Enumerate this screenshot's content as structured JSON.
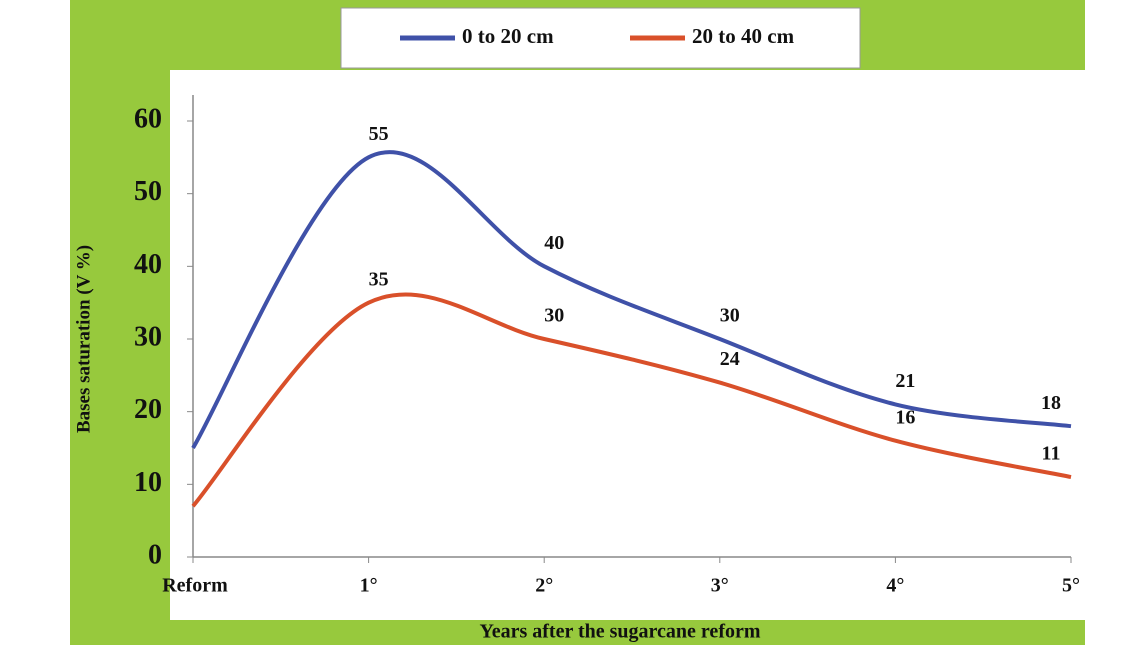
{
  "chart_data": {
    "type": "line",
    "x_label": "Years after the sugarcane reform",
    "y_label": "Bases saturation (V %)",
    "categories": [
      "Reform",
      "1°",
      "2°",
      "3°",
      "4°",
      "5°"
    ],
    "series": [
      {
        "name": "0 to 20 cm",
        "color": "#3f51a8",
        "values": [
          15,
          55,
          40,
          30,
          21,
          18
        ],
        "value_labels": [
          null,
          "55",
          "40",
          "30",
          "21",
          "18"
        ]
      },
      {
        "name": "20 to 40 cm",
        "color": "#d9502a",
        "values": [
          7,
          35,
          30,
          24,
          16,
          11
        ],
        "value_labels": [
          null,
          "35",
          "30",
          "24",
          "16",
          "11"
        ]
      }
    ],
    "ylim": [
      0,
      60
    ],
    "yticks": [
      0,
      10,
      20,
      30,
      40,
      50,
      60
    ],
    "legend": "top",
    "smooth": true
  }
}
